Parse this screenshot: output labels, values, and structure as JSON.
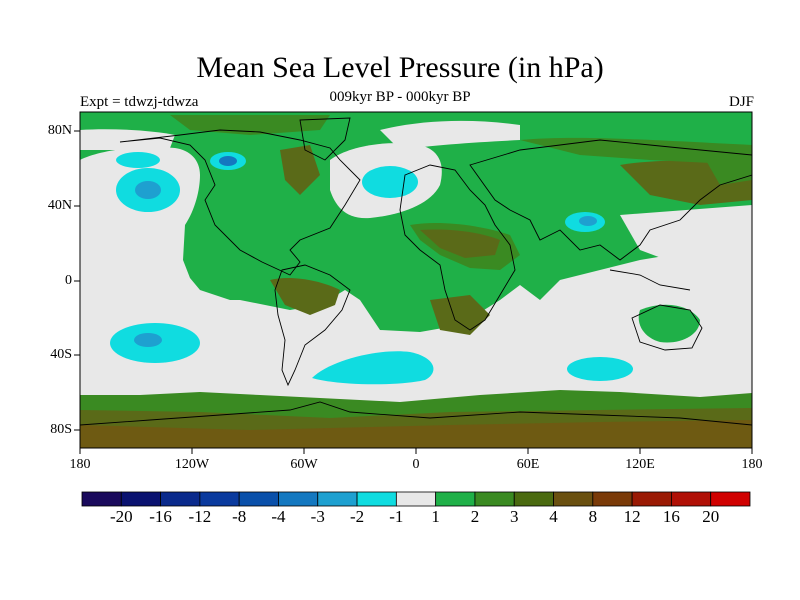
{
  "title": "Mean Sea Level Pressure (in hPa)",
  "subtitle": "009kyr BP - 000kyr BP",
  "experiment_label": "Expt = tdwzj-tdwza",
  "season_label": "DJF",
  "map": {
    "projection": "cylindrical equidistant",
    "lon_range": [
      -180,
      180
    ],
    "lat_range": [
      -90,
      90
    ],
    "lat_ticks": [
      "80N",
      "40N",
      "0",
      "40S",
      "80S"
    ],
    "lon_ticks": [
      "180",
      "120W",
      "60W",
      "0",
      "60E",
      "120E",
      "180"
    ]
  },
  "colorbar": {
    "labels": [
      "-20",
      "-16",
      "-12",
      "-8",
      "-4",
      "-3",
      "-2",
      "-1",
      "1",
      "2",
      "3",
      "4",
      "8",
      "12",
      "16",
      "20"
    ],
    "colors": [
      "#1a0a5c",
      "#0a1270",
      "#0a2a8c",
      "#0a3a9e",
      "#0a50aa",
      "#1478c0",
      "#1ea0d0",
      "#10dce0",
      "#e8e8e8",
      "#1fb048",
      "#3a8a22",
      "#4a6a10",
      "#6a5010",
      "#7a3a08",
      "#9a1a04",
      "#b01006",
      "#d00000"
    ]
  },
  "colors": {
    "background_green": "#1fb048",
    "neutral_gray": "#e8e8e8",
    "cyan": "#10dce0",
    "dark_green": "#3a8a22",
    "olive": "#5a6a18",
    "brown": "#6e5a12",
    "coastline": "#000000"
  }
}
